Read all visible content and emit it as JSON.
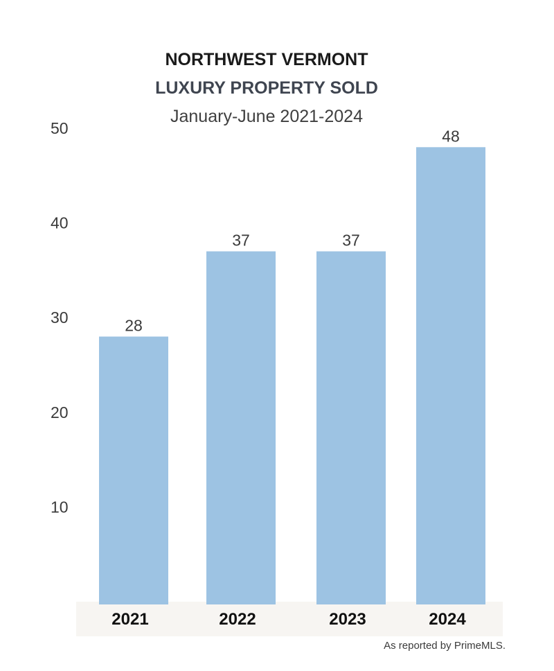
{
  "chart_data": {
    "type": "bar",
    "title_line_1": "NORTHWEST VERMONT",
    "title_line_2": "LUXURY PROPERTY SOLD",
    "subtitle": "January-June 2021-2024",
    "categories": [
      "2021",
      "2022",
      "2023",
      "2024"
    ],
    "values": [
      28,
      37,
      37,
      48
    ],
    "data_labels": [
      "28",
      "37",
      "37",
      "48"
    ],
    "y_ticks": [
      "10",
      "20",
      "30",
      "40",
      "50"
    ],
    "ylim": [
      0,
      50
    ],
    "grid": false,
    "legend": "none",
    "source": "As reported by PrimeMLS.",
    "colors": {
      "bar": "#9dc3e3",
      "x_axis_band": "#f7f5f2"
    }
  }
}
